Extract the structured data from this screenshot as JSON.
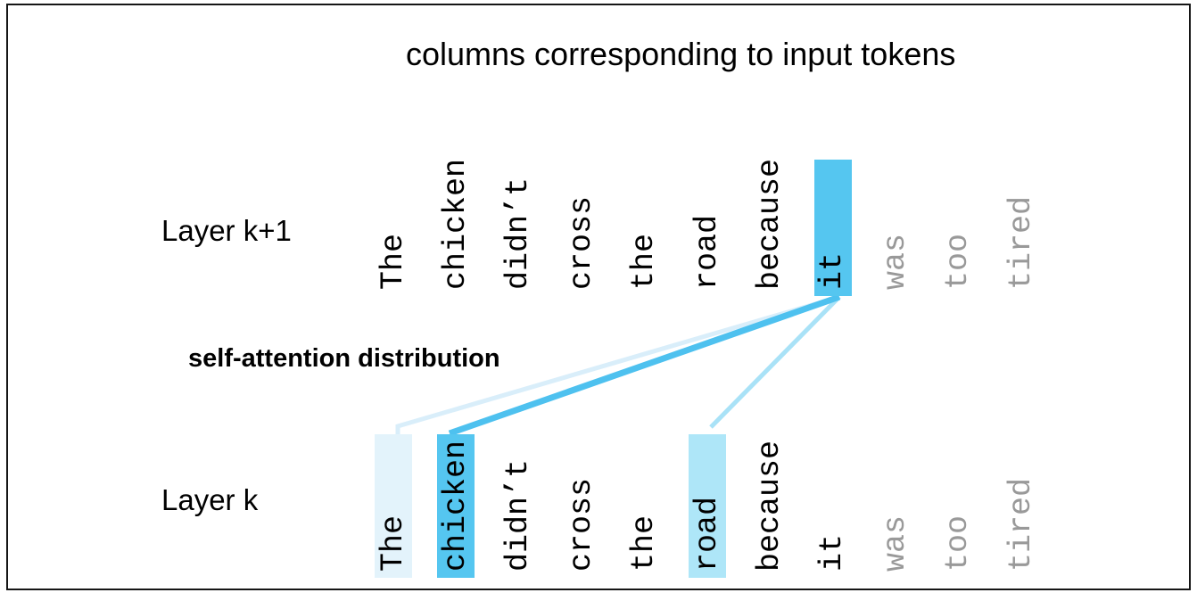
{
  "title": "columns corresponding to input tokens",
  "attention_label": "self-attention distribution",
  "colors": {
    "highlight_strong": "#55C6F0",
    "highlight_medium": "#AEE6F8",
    "highlight_light": "#E3F3FB",
    "line_strong": "#4EC1EF",
    "line_medium": "#A9E2F7",
    "line_light": "#D9EEFA",
    "faded_text": "#999999",
    "normal_text": "#000000"
  },
  "layers": [
    {
      "name": "layer-k1",
      "label": "Layer k+1",
      "tokens": [
        {
          "text": "The"
        },
        {
          "text": "chicken"
        },
        {
          "text": "didn’t"
        },
        {
          "text": "cross"
        },
        {
          "text": "the"
        },
        {
          "text": "road"
        },
        {
          "text": "because"
        },
        {
          "text": "it",
          "highlight": "strong"
        },
        {
          "text": "was",
          "faded": true
        },
        {
          "text": "too",
          "faded": true
        },
        {
          "text": "tired",
          "faded": true
        }
      ]
    },
    {
      "name": "layer-k",
      "label": "Layer k",
      "tokens": [
        {
          "text": "The",
          "highlight": "light"
        },
        {
          "text": "chicken",
          "highlight": "strong"
        },
        {
          "text": "didn’t"
        },
        {
          "text": "cross"
        },
        {
          "text": "the"
        },
        {
          "text": "road",
          "highlight": "medium"
        },
        {
          "text": "because"
        },
        {
          "text": "it"
        },
        {
          "text": "was",
          "faded": true
        },
        {
          "text": "too",
          "faded": true
        },
        {
          "text": "tired",
          "faded": true
        }
      ]
    }
  ],
  "attention_edges": [
    {
      "from": "it (Layer k+1)",
      "to": "The (Layer k)",
      "weight": "light"
    },
    {
      "from": "it (Layer k+1)",
      "to": "chicken (Layer k)",
      "weight": "strong"
    },
    {
      "from": "it (Layer k+1)",
      "to": "road (Layer k)",
      "weight": "medium"
    }
  ]
}
